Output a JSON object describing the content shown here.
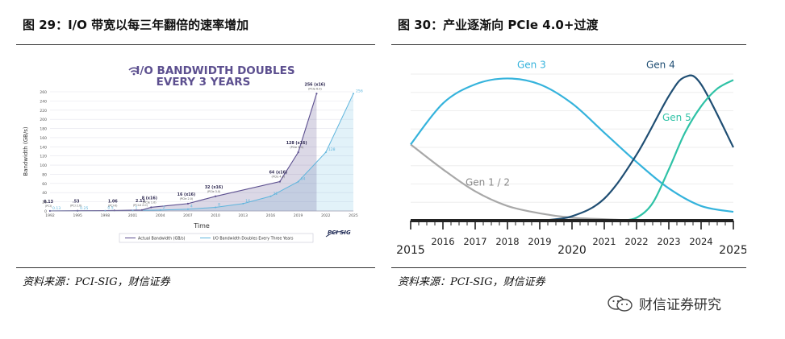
{
  "left": {
    "title": "图 29：I/O 带宽以每三年翻倍的速率增加",
    "source": "资料来源：PCI-SIG，财信证券"
  },
  "right": {
    "title": "图 30：产业逐渐向 PCIe 4.0+过渡",
    "source": "资料来源：PCI-SIG，财信证券"
  },
  "watermark": {
    "text": "财信证券研究",
    "icon": "wechat-icon"
  },
  "colors": {
    "actual": "#5c4f8f",
    "doubles": "#5fb5dd",
    "gen12": "#a8a8a8",
    "gen3": "#35b3dc",
    "gen4": "#1f4e73",
    "gen5": "#2fc2a6",
    "axis": "#222222"
  },
  "chart_data": [
    {
      "type": "area",
      "title": "I/O BANDWIDTH DOUBLES EVERY 3 YEARS",
      "xlabel": "Time",
      "ylabel": "Bandwidth (GB/s)",
      "ylim": [
        0,
        260
      ],
      "yticks": [
        0,
        20,
        40,
        60,
        80,
        100,
        120,
        140,
        160,
        180,
        200,
        220,
        240,
        260
      ],
      "x_ticks": [
        "1992",
        "1995",
        "1998",
        "2001",
        "2004",
        "2007",
        "2010",
        "2013",
        "2016",
        "2019",
        "2022",
        "2025"
      ],
      "grid": true,
      "legend_position": "bottom",
      "logo": "PCI SIG",
      "series": [
        {
          "name": "Actual Bandwidth (GB/s)",
          "points": [
            {
              "x": 1992,
              "y": 0.13,
              "label": "0.13",
              "sublabel": "PCI"
            },
            {
              "x": 1995,
              "y": 0.53,
              "label": ".53",
              "sublabel": "PCI 2.0"
            },
            {
              "x": 1999,
              "y": 1.06,
              "label": "1.06",
              "sublabel": "PCI-X"
            },
            {
              "x": 2002,
              "y": 2.13,
              "label": "2.13",
              "sublabel": "PCI-X 2.0"
            },
            {
              "x": 2003,
              "y": 8,
              "label": "8 (x16)",
              "sublabel": "PCIe 1.0"
            },
            {
              "x": 2007,
              "y": 16,
              "label": "16 (x16)",
              "sublabel": "PCIe 2.0"
            },
            {
              "x": 2010,
              "y": 32,
              "label": "32 (x16)",
              "sublabel": "PCIe 3.0"
            },
            {
              "x": 2017,
              "y": 64,
              "label": "64 (x16)",
              "sublabel": "PCIe 4.0"
            },
            {
              "x": 2019,
              "y": 128,
              "label": "128 (x16)",
              "sublabel": "PCIe 5.0"
            },
            {
              "x": 2021,
              "y": 256,
              "label": "256 (x16)",
              "sublabel": "PCIe 6.0"
            }
          ]
        },
        {
          "name": "I/O Bandwidth Doubles Every Three Years",
          "points": [
            {
              "x": 1992,
              "y": 0.13,
              "label": "0.13"
            },
            {
              "x": 1995,
              "y": 0.25,
              "label": "0.25"
            },
            {
              "x": 1998,
              "y": 0.5,
              "label": "0.5"
            },
            {
              "x": 2001,
              "y": 1,
              "label": "1"
            },
            {
              "x": 2004,
              "y": 2,
              "label": "2"
            },
            {
              "x": 2007,
              "y": 4,
              "label": "4"
            },
            {
              "x": 2010,
              "y": 8,
              "label": "8"
            },
            {
              "x": 2013,
              "y": 16,
              "label": "16"
            },
            {
              "x": 2016,
              "y": 32,
              "label": "32"
            },
            {
              "x": 2019,
              "y": 64,
              "label": "64"
            },
            {
              "x": 2022,
              "y": 128,
              "label": "128"
            },
            {
              "x": 2025,
              "y": 256,
              "label": "256"
            }
          ]
        }
      ]
    },
    {
      "type": "line",
      "title": "",
      "xlabel": "",
      "ylabel": "",
      "xlim": [
        2015,
        2025
      ],
      "x_ticks": [
        2015,
        2016,
        2017,
        2018,
        2019,
        2020,
        2021,
        2022,
        2023,
        2024,
        2025
      ],
      "x_ticks_emphasized": [
        2015,
        2020,
        2025
      ],
      "grid": true,
      "series": [
        {
          "name": "Gen 1 / 2",
          "x": [
            2015,
            2016,
            2017,
            2018,
            2019,
            2020,
            2021,
            2022
          ],
          "y": [
            0.52,
            0.35,
            0.2,
            0.1,
            0.05,
            0.02,
            0.01,
            0.0
          ]
        },
        {
          "name": "Gen 3",
          "x": [
            2015,
            2016,
            2017,
            2018,
            2019,
            2020,
            2021,
            2022,
            2023,
            2024,
            2025
          ],
          "y": [
            0.52,
            0.8,
            0.93,
            0.97,
            0.93,
            0.8,
            0.6,
            0.4,
            0.22,
            0.1,
            0.06
          ]
        },
        {
          "name": "Gen 4",
          "x": [
            2019,
            2020,
            2021,
            2022,
            2023,
            2023.5,
            2024,
            2025
          ],
          "y": [
            0.0,
            0.03,
            0.15,
            0.45,
            0.85,
            0.98,
            0.93,
            0.5
          ]
        },
        {
          "name": "Gen 5",
          "x": [
            2021.5,
            2022,
            2022.5,
            2023,
            2023.5,
            2024,
            2024.5,
            2025
          ],
          "y": [
            0.0,
            0.02,
            0.12,
            0.35,
            0.6,
            0.78,
            0.9,
            0.96
          ]
        }
      ]
    }
  ]
}
